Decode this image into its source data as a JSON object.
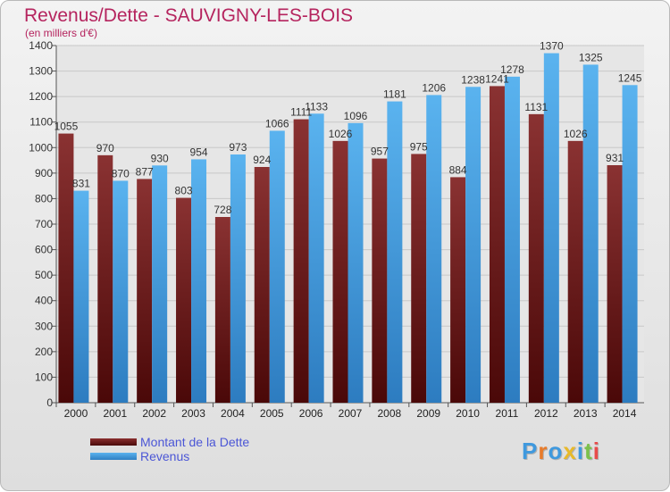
{
  "chart_data": {
    "type": "bar",
    "title": "Revenus/Dette - SAUVIGNY-LES-BOIS",
    "subtitle": "(en milliers d'€)",
    "categories": [
      "2000",
      "2001",
      "2002",
      "2003",
      "2004",
      "2005",
      "2006",
      "2007",
      "2008",
      "2009",
      "2010",
      "2011",
      "2012",
      "2013",
      "2014"
    ],
    "series": [
      {
        "name": "Montant de la Dette",
        "color": "#7b2222",
        "values": [
          1055,
          970,
          877,
          803,
          728,
          924,
          1111,
          1026,
          957,
          975,
          884,
          1241,
          1131,
          1026,
          931
        ]
      },
      {
        "name": "Revenus",
        "color": "#3f99de",
        "values": [
          831,
          870,
          930,
          954,
          973,
          1066,
          1133,
          1096,
          1181,
          1206,
          1238,
          1278,
          1370,
          1325,
          1245
        ]
      }
    ],
    "ylim": [
      0,
      1400
    ],
    "yticks": [
      0,
      100,
      200,
      300,
      400,
      500,
      600,
      700,
      800,
      900,
      1000,
      1100,
      1200,
      1300,
      1400
    ],
    "grid": true,
    "legend_position": "bottom-left"
  },
  "branding": {
    "logo_text": "Proxiti",
    "logo_colors": [
      "#3f99de",
      "#e87b2a",
      "#3f99de",
      "#e8b92a",
      "#3f99de",
      "#7bc04a",
      "#e84a4a"
    ]
  }
}
